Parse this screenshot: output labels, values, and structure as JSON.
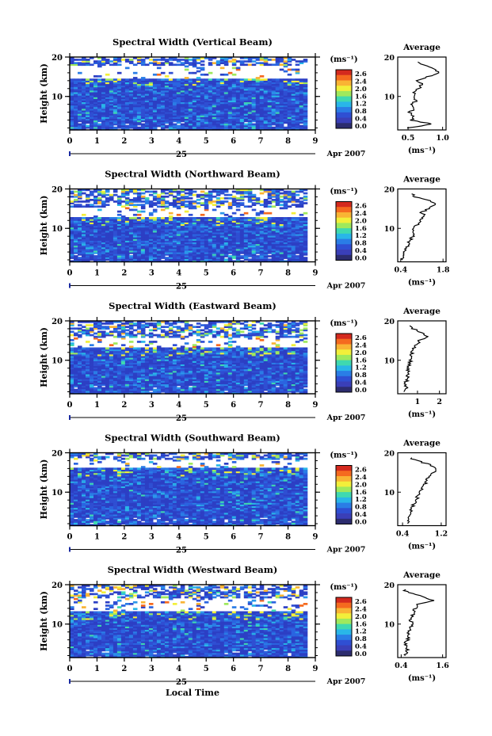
{
  "figure": {
    "panels": [
      {
        "title": "Spectral Width (Vertical Beam)"
      },
      {
        "title": "Spectral Width (Northward Beam)"
      },
      {
        "title": "Spectral Width (Eastward Beam)"
      },
      {
        "title": "Spectral Width (Southward Beam)"
      },
      {
        "title": "Spectral Width (Westward Beam)"
      }
    ],
    "colorbar": {
      "unit": "(ms⁻¹)",
      "ticks": [
        "2.6",
        "2.4",
        "2.0",
        "1.6",
        "1.2",
        "0.8",
        "0.4",
        "0.0"
      ],
      "colors": [
        "#d42a1e",
        "#f56a1f",
        "#f9b434",
        "#f2ef3a",
        "#9fe95c",
        "#3fd9b0",
        "#29b6e8",
        "#2a7de6",
        "#2f4fd3",
        "#3a3fb8",
        "#2c2c6e"
      ]
    },
    "x_axis": {
      "ticks": [
        "0",
        "1",
        "2",
        "3",
        "4",
        "5",
        "6",
        "7",
        "8",
        "9"
      ],
      "day_label": "25",
      "month_label": "Apr 2007",
      "xlabel": "Local Time"
    },
    "y_axis": {
      "ylabel": "Height (km)",
      "ticks": [
        "20",
        "10"
      ]
    },
    "avg_panel": {
      "title": "Average",
      "unit": "(ms⁻¹)"
    }
  },
  "chart_data": [
    {
      "type": "heatmap",
      "title": "Spectral Width (Vertical Beam)",
      "xlabel": "",
      "ylabel": "Height (km)",
      "xlim": [
        0,
        9
      ],
      "ylim": [
        1.5,
        20
      ],
      "colorbar_range": [
        0.0,
        2.6
      ],
      "colorbar_unit": "(ms⁻¹)",
      "date": "25 Apr 2007",
      "valid_time_range": [
        0,
        8.7
      ],
      "gap_band_km": [
        14.5,
        17.5
      ],
      "average_profile": {
        "title": "Average",
        "xlabel": "(ms⁻¹)",
        "xticks": [
          "0.5",
          "1.0"
        ],
        "xlim": [
          0.35,
          1.05
        ],
        "ylim": [
          1.5,
          20
        ],
        "height_km": [
          2,
          3,
          4,
          5,
          6,
          7,
          8,
          9,
          10,
          11,
          12,
          13,
          14,
          15,
          16,
          17,
          18,
          19
        ],
        "width": [
          0.5,
          0.85,
          0.55,
          0.58,
          0.52,
          0.6,
          0.56,
          0.62,
          0.6,
          0.58,
          0.66,
          0.7,
          0.64,
          0.78,
          0.95,
          0.86,
          0.72,
          0.62
        ]
      }
    },
    {
      "type": "heatmap",
      "title": "Spectral Width (Northward Beam)",
      "xlabel": "",
      "ylabel": "Height (km)",
      "xlim": [
        0,
        9
      ],
      "ylim": [
        1.5,
        20
      ],
      "colorbar_range": [
        0.0,
        2.6
      ],
      "colorbar_unit": "(ms⁻¹)",
      "date": "25 Apr 2007",
      "valid_time_range": [
        0,
        8.7
      ],
      "gap_band_km": [
        12.5,
        15.0
      ],
      "average_profile": {
        "title": "Average",
        "xlabel": "(ms⁻¹)",
        "xticks": [
          "0.4",
          "1.8"
        ],
        "xlim": [
          0.3,
          1.9
        ],
        "ylim": [
          1.5,
          20
        ],
        "height_km": [
          2,
          3,
          4,
          5,
          6,
          7,
          8,
          9,
          10,
          11,
          12,
          13,
          14,
          15,
          16,
          17,
          18,
          19
        ],
        "width": [
          0.45,
          0.5,
          0.55,
          0.6,
          0.65,
          0.72,
          0.8,
          0.78,
          0.85,
          0.95,
          1.05,
          1.2,
          1.1,
          1.3,
          1.55,
          1.35,
          0.9,
          0.7
        ]
      }
    },
    {
      "type": "heatmap",
      "title": "Spectral Width (Eastward Beam)",
      "xlabel": "",
      "ylabel": "Height (km)",
      "xlim": [
        0,
        9
      ],
      "ylim": [
        1.5,
        20
      ],
      "colorbar_range": [
        0.0,
        2.6
      ],
      "colorbar_unit": "(ms⁻¹)",
      "date": "25 Apr 2007",
      "valid_time_range": [
        0,
        8.7
      ],
      "gap_band_km": [
        13.0,
        15.5
      ],
      "average_profile": {
        "title": "Average",
        "xlabel": "(ms⁻¹)",
        "xticks": [
          "1",
          "2"
        ],
        "xlim": [
          0.1,
          2.3
        ],
        "ylim": [
          1.5,
          20
        ],
        "height_km": [
          2,
          3,
          4,
          5,
          6,
          7,
          8,
          9,
          10,
          11,
          12,
          13,
          14,
          15,
          16,
          17,
          18,
          19
        ],
        "width": [
          0.45,
          0.5,
          0.42,
          0.55,
          0.52,
          0.6,
          0.58,
          0.62,
          0.7,
          0.68,
          0.75,
          0.85,
          0.95,
          1.1,
          1.5,
          1.2,
          0.8,
          0.55
        ]
      }
    },
    {
      "type": "heatmap",
      "title": "Spectral Width (Southward Beam)",
      "xlabel": "",
      "ylabel": "Height (km)",
      "xlim": [
        0,
        9
      ],
      "ylim": [
        1.5,
        20
      ],
      "colorbar_range": [
        0.0,
        2.6
      ],
      "colorbar_unit": "(ms⁻¹)",
      "date": "25 Apr 2007",
      "valid_time_range": [
        0,
        8.7
      ],
      "gap_band_km": [
        16.0,
        18.0
      ],
      "average_profile": {
        "title": "Average",
        "xlabel": "(ms⁻¹)",
        "xticks": [
          "0.4",
          "1.2"
        ],
        "xlim": [
          0.3,
          1.3
        ],
        "ylim": [
          1.5,
          20
        ],
        "height_km": [
          2,
          3,
          4,
          5,
          6,
          7,
          8,
          9,
          10,
          11,
          12,
          13,
          14,
          15,
          16,
          17,
          18,
          19
        ],
        "width": [
          0.48,
          0.52,
          0.55,
          0.6,
          0.58,
          0.64,
          0.68,
          0.72,
          0.78,
          0.82,
          0.86,
          0.9,
          0.95,
          1.05,
          1.1,
          0.95,
          0.7,
          0.52
        ]
      }
    },
    {
      "type": "heatmap",
      "title": "Spectral Width (Westward Beam)",
      "xlabel": "Local Time",
      "ylabel": "Height (km)",
      "xlim": [
        0,
        9
      ],
      "ylim": [
        1.5,
        20
      ],
      "colorbar_range": [
        0.0,
        2.6
      ],
      "colorbar_unit": "(ms⁻¹)",
      "date": "25 Apr 2007",
      "valid_time_range": [
        0,
        8.7
      ],
      "gap_band_km": [
        13.0,
        16.5
      ],
      "average_profile": {
        "title": "Average",
        "xlabel": "(ms⁻¹)",
        "xticks": [
          "0.4",
          "1.6"
        ],
        "xlim": [
          0.3,
          1.7
        ],
        "ylim": [
          1.5,
          20
        ],
        "height_km": [
          2,
          3,
          4,
          5,
          6,
          7,
          8,
          9,
          10,
          11,
          12,
          13,
          14,
          15,
          16,
          17,
          18,
          19
        ],
        "width": [
          0.5,
          0.55,
          0.6,
          0.52,
          0.58,
          0.62,
          0.6,
          0.66,
          0.7,
          0.68,
          0.72,
          0.75,
          0.8,
          0.9,
          1.3,
          1.0,
          0.6,
          0.45
        ]
      }
    }
  ]
}
